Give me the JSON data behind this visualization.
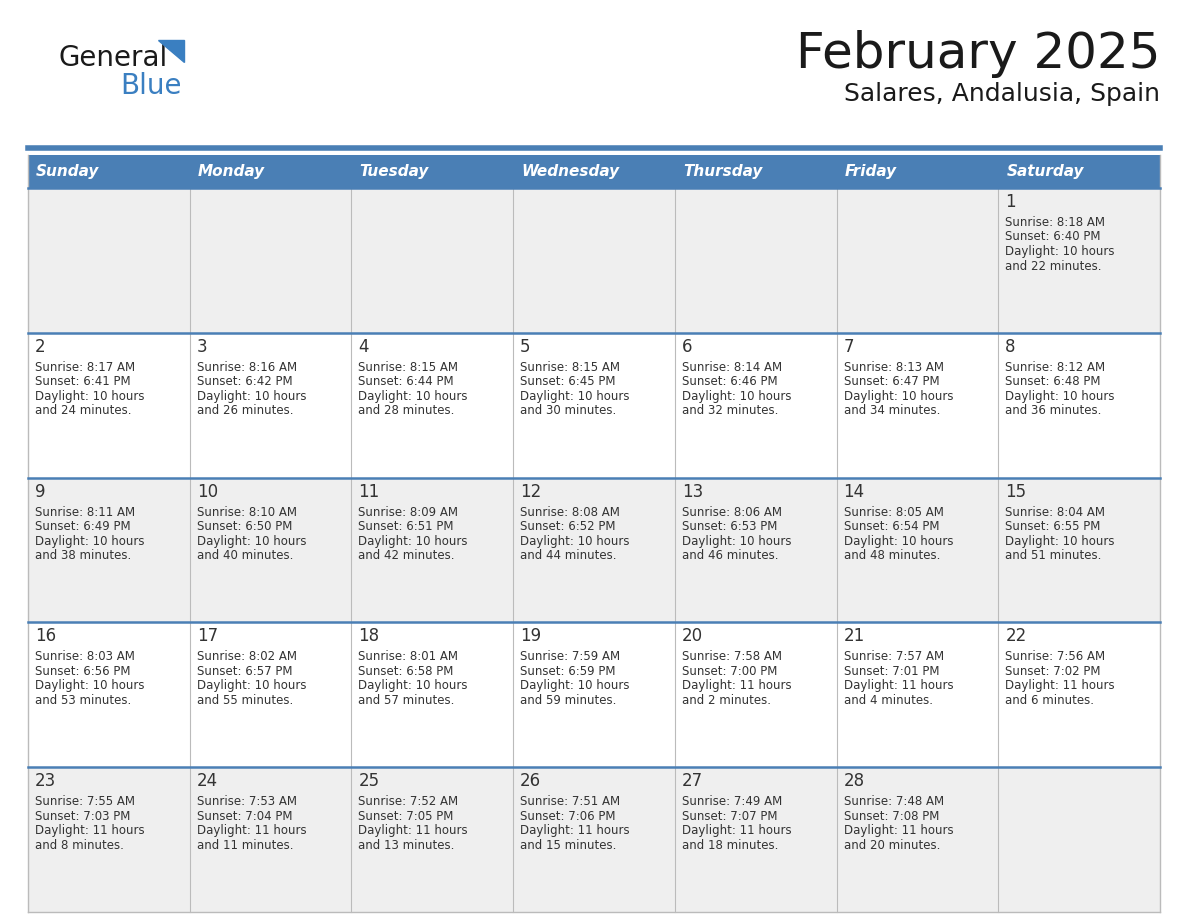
{
  "title": "February 2025",
  "subtitle": "Salares, Andalusia, Spain",
  "header_bg_color": "#4a7fb5",
  "header_text_color": "#ffffff",
  "cell_bg_even": "#efefef",
  "cell_bg_odd": "#ffffff",
  "cell_text_color": "#333333",
  "day_number_color": "#333333",
  "separator_color": "#4a7fb5",
  "grid_line_color": "#bbbbbb",
  "days_of_week": [
    "Sunday",
    "Monday",
    "Tuesday",
    "Wednesday",
    "Thursday",
    "Friday",
    "Saturday"
  ],
  "title_color": "#1a1a1a",
  "subtitle_color": "#1a1a1a",
  "logo_general_color": "#1a1a1a",
  "logo_blue_color": "#3a7fc1",
  "weeks": [
    [
      {
        "day": null,
        "sunrise": null,
        "sunset": null,
        "daylight": null
      },
      {
        "day": null,
        "sunrise": null,
        "sunset": null,
        "daylight": null
      },
      {
        "day": null,
        "sunrise": null,
        "sunset": null,
        "daylight": null
      },
      {
        "day": null,
        "sunrise": null,
        "sunset": null,
        "daylight": null
      },
      {
        "day": null,
        "sunrise": null,
        "sunset": null,
        "daylight": null
      },
      {
        "day": null,
        "sunrise": null,
        "sunset": null,
        "daylight": null
      },
      {
        "day": 1,
        "sunrise": "8:18 AM",
        "sunset": "6:40 PM",
        "daylight": "10 hours",
        "daylight2": "and 22 minutes."
      }
    ],
    [
      {
        "day": 2,
        "sunrise": "8:17 AM",
        "sunset": "6:41 PM",
        "daylight": "10 hours",
        "daylight2": "and 24 minutes."
      },
      {
        "day": 3,
        "sunrise": "8:16 AM",
        "sunset": "6:42 PM",
        "daylight": "10 hours",
        "daylight2": "and 26 minutes."
      },
      {
        "day": 4,
        "sunrise": "8:15 AM",
        "sunset": "6:44 PM",
        "daylight": "10 hours",
        "daylight2": "and 28 minutes."
      },
      {
        "day": 5,
        "sunrise": "8:15 AM",
        "sunset": "6:45 PM",
        "daylight": "10 hours",
        "daylight2": "and 30 minutes."
      },
      {
        "day": 6,
        "sunrise": "8:14 AM",
        "sunset": "6:46 PM",
        "daylight": "10 hours",
        "daylight2": "and 32 minutes."
      },
      {
        "day": 7,
        "sunrise": "8:13 AM",
        "sunset": "6:47 PM",
        "daylight": "10 hours",
        "daylight2": "and 34 minutes."
      },
      {
        "day": 8,
        "sunrise": "8:12 AM",
        "sunset": "6:48 PM",
        "daylight": "10 hours",
        "daylight2": "and 36 minutes."
      }
    ],
    [
      {
        "day": 9,
        "sunrise": "8:11 AM",
        "sunset": "6:49 PM",
        "daylight": "10 hours",
        "daylight2": "and 38 minutes."
      },
      {
        "day": 10,
        "sunrise": "8:10 AM",
        "sunset": "6:50 PM",
        "daylight": "10 hours",
        "daylight2": "and 40 minutes."
      },
      {
        "day": 11,
        "sunrise": "8:09 AM",
        "sunset": "6:51 PM",
        "daylight": "10 hours",
        "daylight2": "and 42 minutes."
      },
      {
        "day": 12,
        "sunrise": "8:08 AM",
        "sunset": "6:52 PM",
        "daylight": "10 hours",
        "daylight2": "and 44 minutes."
      },
      {
        "day": 13,
        "sunrise": "8:06 AM",
        "sunset": "6:53 PM",
        "daylight": "10 hours",
        "daylight2": "and 46 minutes."
      },
      {
        "day": 14,
        "sunrise": "8:05 AM",
        "sunset": "6:54 PM",
        "daylight": "10 hours",
        "daylight2": "and 48 minutes."
      },
      {
        "day": 15,
        "sunrise": "8:04 AM",
        "sunset": "6:55 PM",
        "daylight": "10 hours",
        "daylight2": "and 51 minutes."
      }
    ],
    [
      {
        "day": 16,
        "sunrise": "8:03 AM",
        "sunset": "6:56 PM",
        "daylight": "10 hours",
        "daylight2": "and 53 minutes."
      },
      {
        "day": 17,
        "sunrise": "8:02 AM",
        "sunset": "6:57 PM",
        "daylight": "10 hours",
        "daylight2": "and 55 minutes."
      },
      {
        "day": 18,
        "sunrise": "8:01 AM",
        "sunset": "6:58 PM",
        "daylight": "10 hours",
        "daylight2": "and 57 minutes."
      },
      {
        "day": 19,
        "sunrise": "7:59 AM",
        "sunset": "6:59 PM",
        "daylight": "10 hours",
        "daylight2": "and 59 minutes."
      },
      {
        "day": 20,
        "sunrise": "7:58 AM",
        "sunset": "7:00 PM",
        "daylight": "11 hours",
        "daylight2": "and 2 minutes."
      },
      {
        "day": 21,
        "sunrise": "7:57 AM",
        "sunset": "7:01 PM",
        "daylight": "11 hours",
        "daylight2": "and 4 minutes."
      },
      {
        "day": 22,
        "sunrise": "7:56 AM",
        "sunset": "7:02 PM",
        "daylight": "11 hours",
        "daylight2": "and 6 minutes."
      }
    ],
    [
      {
        "day": 23,
        "sunrise": "7:55 AM",
        "sunset": "7:03 PM",
        "daylight": "11 hours",
        "daylight2": "and 8 minutes."
      },
      {
        "day": 24,
        "sunrise": "7:53 AM",
        "sunset": "7:04 PM",
        "daylight": "11 hours",
        "daylight2": "and 11 minutes."
      },
      {
        "day": 25,
        "sunrise": "7:52 AM",
        "sunset": "7:05 PM",
        "daylight": "11 hours",
        "daylight2": "and 13 minutes."
      },
      {
        "day": 26,
        "sunrise": "7:51 AM",
        "sunset": "7:06 PM",
        "daylight": "11 hours",
        "daylight2": "and 15 minutes."
      },
      {
        "day": 27,
        "sunrise": "7:49 AM",
        "sunset": "7:07 PM",
        "daylight": "11 hours",
        "daylight2": "and 18 minutes."
      },
      {
        "day": 28,
        "sunrise": "7:48 AM",
        "sunset": "7:08 PM",
        "daylight": "11 hours",
        "daylight2": "and 20 minutes."
      },
      {
        "day": null,
        "sunrise": null,
        "sunset": null,
        "daylight": null,
        "daylight2": null
      }
    ]
  ]
}
